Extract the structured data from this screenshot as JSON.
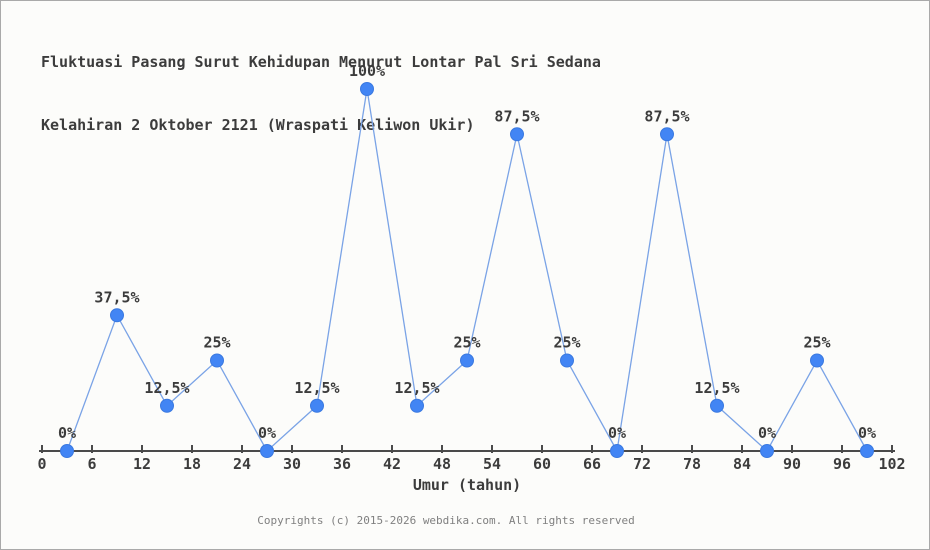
{
  "page": {
    "title_line1": "Fluktuasi Pasang Surut Kehidupan Menurut Lontar Pal Sri Sedana",
    "title_line2": "Kelahiran 2 Oktober 2121 (Wraspati Keliwon Ukir)",
    "footer": "Copyrights (c) 2015-2026 webdika.com. All rights reserved"
  },
  "chart_data": {
    "type": "line",
    "title": "Fluktuasi Pasang Surut Kehidupan Menurut Lontar Pal Sri Sedana Kelahiran 2 Oktober 2121 (Wraspati Keliwon Ukir)",
    "xlabel": "Umur (tahun)",
    "ylabel": "",
    "x": [
      3,
      9,
      15,
      21,
      27,
      33,
      39,
      45,
      51,
      57,
      63,
      69,
      75,
      81,
      87,
      93,
      99
    ],
    "values": [
      0,
      37.5,
      12.5,
      25,
      0,
      12.5,
      100,
      12.5,
      25,
      87.5,
      25,
      0,
      87.5,
      12.5,
      0,
      25,
      0
    ],
    "point_labels": [
      "0%",
      "37,5%",
      "12,5%",
      "25%",
      "0%",
      "12,5%",
      "100%",
      "12,5%",
      "25%",
      "87,5%",
      "25%",
      "0%",
      "87,5%",
      "12,5%",
      "0%",
      "25%",
      "0%"
    ],
    "x_ticks": [
      0,
      6,
      12,
      18,
      24,
      30,
      36,
      42,
      48,
      54,
      60,
      66,
      72,
      78,
      84,
      90,
      96,
      102
    ],
    "xlim": [
      0,
      102
    ],
    "ylim": [
      0,
      100
    ],
    "grid": false,
    "legend": "none",
    "y_axis_shown": false,
    "colors": {
      "marker": "#4285f4",
      "marker_edge": "#3a79e0",
      "line": "#7aa3e6",
      "axis": "#4a4a4a",
      "text": "#3c3c3c",
      "footer_text": "#808080",
      "background": "#fcfcfa"
    }
  }
}
